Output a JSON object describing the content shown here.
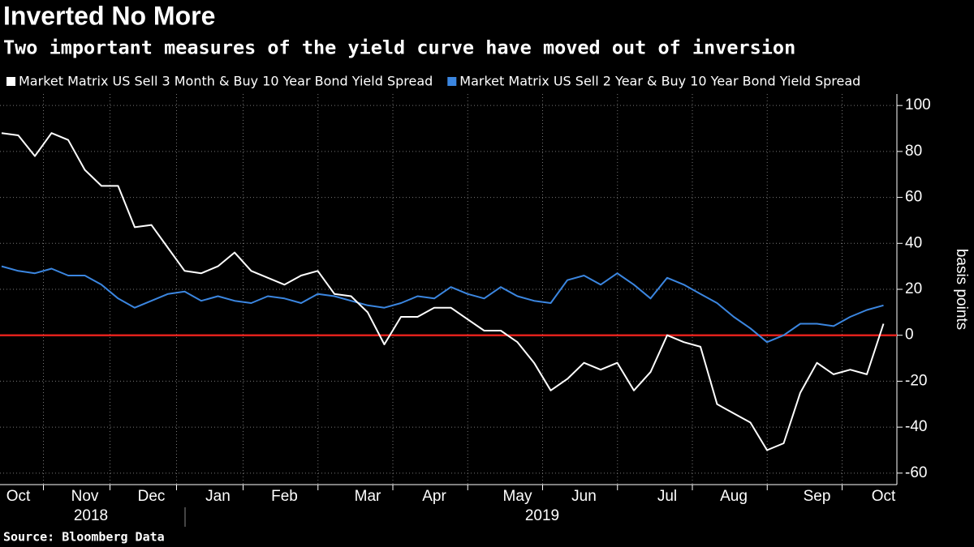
{
  "chart_data": {
    "type": "line",
    "title": "Inverted No More",
    "subtitle": "Two important measures of the yield curve have moved out of inversion",
    "source": "Source: Bloomberg Data",
    "y_label": "basis points",
    "categories": [
      null,
      "Oct",
      null,
      null,
      null,
      "Nov",
      null,
      null,
      null,
      "Dec",
      null,
      null,
      null,
      "Jan",
      null,
      null,
      null,
      "Feb",
      null,
      null,
      null,
      null,
      "Mar",
      null,
      null,
      null,
      "Apr",
      null,
      null,
      null,
      null,
      "May",
      null,
      null,
      null,
      "Jun",
      null,
      null,
      null,
      null,
      "Jul",
      null,
      null,
      null,
      "Aug",
      null,
      null,
      null,
      null,
      "Sep",
      null,
      null,
      null,
      "Oct"
    ],
    "x_groups": [
      "2018",
      "2019"
    ],
    "series": [
      {
        "name": "Market Matrix US Sell 3 Month & Buy 10 Year Bond Yield Spread",
        "color": "#ffffff",
        "values": [
          88,
          87,
          78,
          88,
          85,
          72,
          65,
          65,
          47,
          48,
          38,
          28,
          27,
          30,
          36,
          28,
          25,
          22,
          26,
          28,
          18,
          17,
          10,
          -4,
          8,
          8,
          12,
          12,
          7,
          2,
          2,
          -3,
          -12,
          -24,
          -19,
          -12,
          -15,
          -12,
          -24,
          -16,
          0,
          -3,
          -5,
          -30,
          -34,
          -38,
          -50,
          -47,
          -25,
          -12,
          -17,
          -15,
          -17,
          5
        ]
      },
      {
        "name": "Market Matrix US Sell 2 Year & Buy 10 Year Bond Yield Spread",
        "color": "#3b86e0",
        "values": [
          30,
          28,
          27,
          29,
          26,
          26,
          22,
          16,
          12,
          15,
          18,
          19,
          15,
          17,
          15,
          14,
          17,
          16,
          14,
          18,
          17,
          15,
          13,
          12,
          14,
          17,
          16,
          21,
          18,
          16,
          21,
          17,
          15,
          14,
          24,
          26,
          22,
          27,
          22,
          16,
          25,
          22,
          18,
          14,
          8,
          3,
          -3,
          0,
          5,
          5,
          4,
          8,
          11,
          13
        ]
      }
    ],
    "ylim": [
      -65,
      105
    ],
    "yticks": [
      100,
      80,
      60,
      40,
      20,
      0,
      -20,
      -40,
      -60
    ],
    "ref_line": {
      "value": 0,
      "color": "#e0201b"
    },
    "grid": true
  }
}
